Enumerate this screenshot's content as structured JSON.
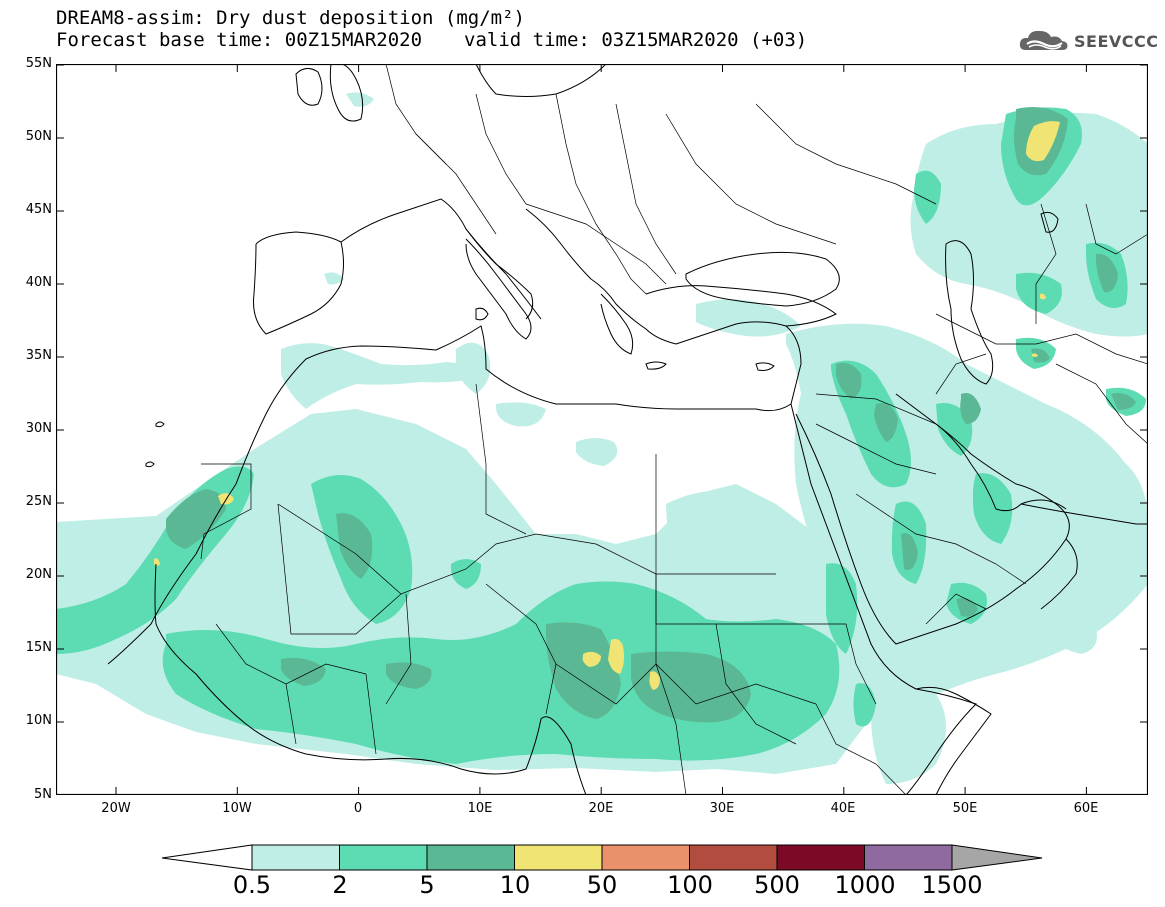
{
  "title": {
    "line1": "DREAM8-assim: Dry dust deposition (mg/m²)",
    "base_time": "Forecast base time: 00Z15MAR2020",
    "valid_time": "valid time: 03Z15MAR2020 (+03)"
  },
  "logo": {
    "icon": "cloud-icon",
    "text": "SEEVCCC"
  },
  "lat_labels": [
    "55N",
    "50N",
    "45N",
    "40N",
    "35N",
    "30N",
    "25N",
    "20N",
    "15N",
    "10N",
    "5N"
  ],
  "lon_labels": [
    "20W",
    "10W",
    "0",
    "10E",
    "20E",
    "30E",
    "40E",
    "50E",
    "60E"
  ],
  "colorbar": {
    "labels": [
      "0.5",
      "2",
      "5",
      "10",
      "50",
      "100",
      "500",
      "1000",
      "1500"
    ],
    "colors": [
      "#bfeee6",
      "#5ddcb4",
      "#5ab994",
      "#f0e474",
      "#e8916a",
      "#b24c3e",
      "#7c0a26",
      "#8e6a9e",
      "#a6a6a6"
    ],
    "under_color": "#ffffff",
    "over_color": "#a6a6a6"
  },
  "colors": {
    "coast": "#000000",
    "frame": "#000000",
    "background": "#ffffff"
  }
}
